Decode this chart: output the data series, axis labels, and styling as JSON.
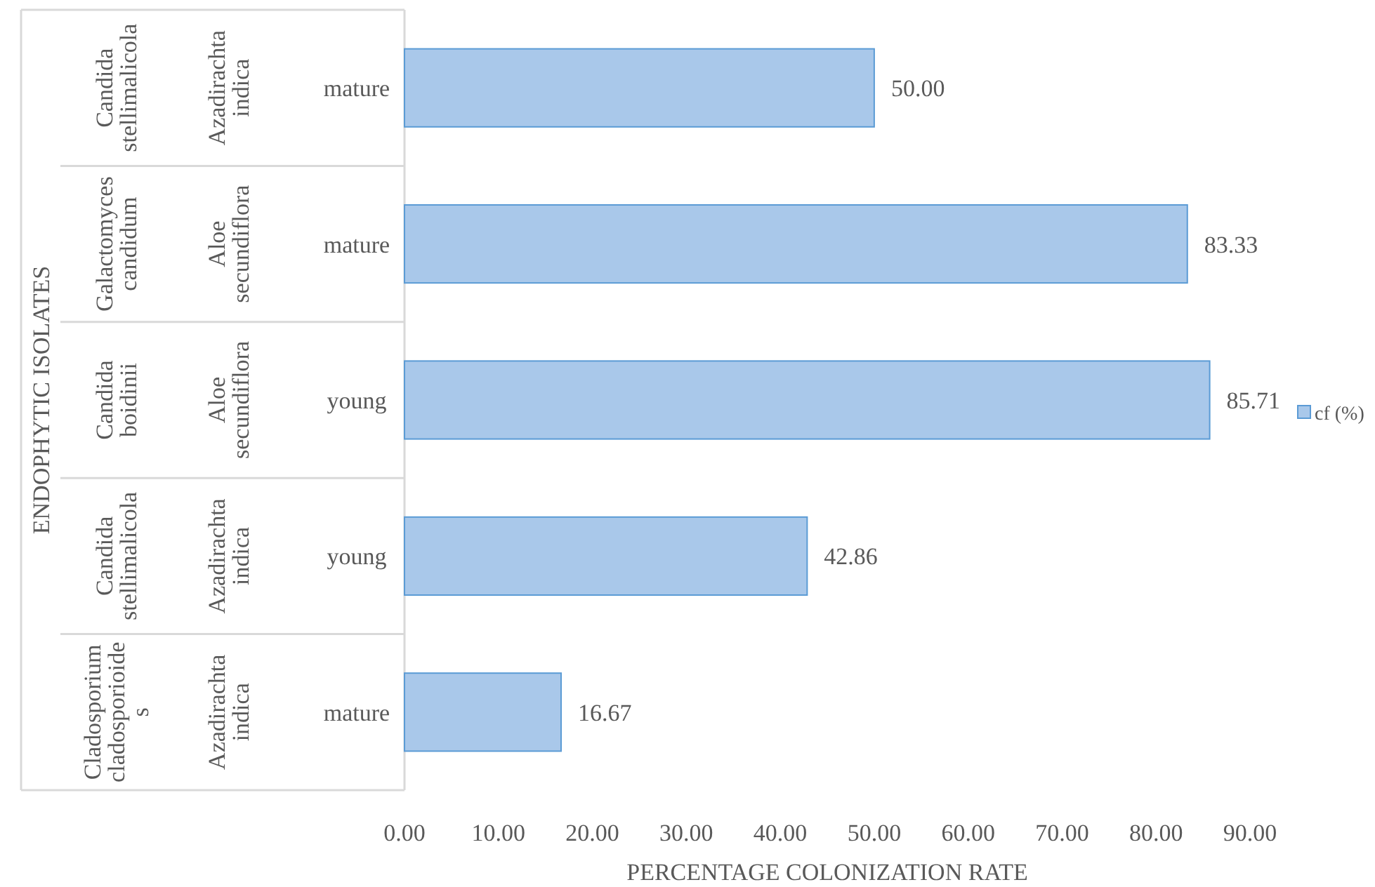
{
  "chart_data": {
    "type": "bar",
    "orientation": "horizontal",
    "xlabel": "PERCENTAGE COLONIZATION RATE",
    "categories": [
      "mature",
      "mature",
      "young",
      "young",
      "mature"
    ],
    "ylabel": null,
    "series": [
      {
        "name": "cf (%)",
        "color": "#a9c8ea",
        "values": [
          50.0,
          83.33,
          85.71,
          42.86,
          16.67
        ]
      }
    ],
    "value_labels": [
      "50.00",
      "83.33",
      "85.71",
      "42.86",
      "16.67"
    ],
    "annotations": [
      "ENDOPHYTIC ISOLATES",
      "Candida stellimalicola",
      "Galactomyces candidum",
      "Candida boidinii",
      "Candida stellimalicola",
      "Cladosporium cladosporioides",
      "Azadirachta indica",
      "Aloe secundiflora",
      "Aloe secundiflora",
      "Azadirachta indica",
      "Azadirachta indica"
    ],
    "xlim": [
      0,
      90
    ],
    "xticks": [
      {
        "value": 0,
        "label": "0.00"
      },
      {
        "value": 10,
        "label": "10.00"
      },
      {
        "value": 20,
        "label": "20.00"
      },
      {
        "value": 30,
        "label": "30.00"
      },
      {
        "value": 40,
        "label": "40.00"
      },
      {
        "value": 50,
        "label": "50.00"
      },
      {
        "value": 60,
        "label": "60.00"
      },
      {
        "value": 70,
        "label": "70.00"
      },
      {
        "value": 80,
        "label": "80.00"
      },
      {
        "value": 90,
        "label": "90.00"
      }
    ],
    "legend": "right",
    "grid": false
  }
}
